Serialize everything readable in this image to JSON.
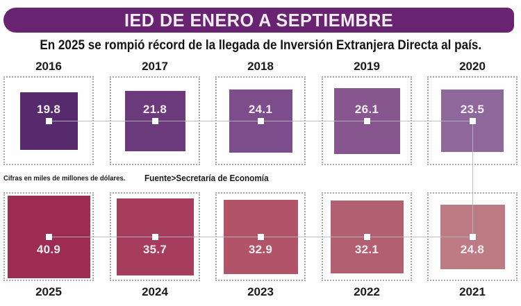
{
  "header": {
    "title": "IED DE ENERO A SEPTIEMBRE",
    "subtitle": "En 2025 se rompió récord de la llegada de Inversión Extranjera Directa al país."
  },
  "notes": {
    "units": "Cifras en miles de millones de dólares.",
    "source": "Fuente>Secretaría de Economía"
  },
  "colors": {
    "banner": "#682470",
    "connector_line": "#b9b5c2",
    "dashed_border": "#a9a4ab",
    "marker": "#ffffff",
    "value_text": "#f5eef3"
  },
  "chart_data": {
    "type": "bar",
    "variant": "proportional-square-pictogram",
    "note": "square area proportional to value; values shown in miles de millones de dólares (USD billions)",
    "title": "IED DE ENERO A SEPTIEMBRE",
    "legend_position": "none",
    "grid": false,
    "rows": [
      {
        "name": "top",
        "value_position": "above-marker",
        "categories": [
          "2016",
          "2017",
          "2018",
          "2019",
          "2020"
        ],
        "values": [
          19.8,
          21.8,
          24.1,
          26.1,
          23.5
        ],
        "colors": [
          "#572a6d",
          "#6b3a7b",
          "#7c4c8b",
          "#87568f",
          "#8e689b"
        ]
      },
      {
        "name": "bottom",
        "value_position": "below-marker",
        "categories": [
          "2025",
          "2024",
          "2023",
          "2022",
          "2021"
        ],
        "values": [
          40.9,
          35.7,
          32.9,
          32.1,
          24.8
        ],
        "colors": [
          "#9e2b51",
          "#a73d5e",
          "#b1546a",
          "#b26071",
          "#bd7b84"
        ]
      }
    ]
  }
}
